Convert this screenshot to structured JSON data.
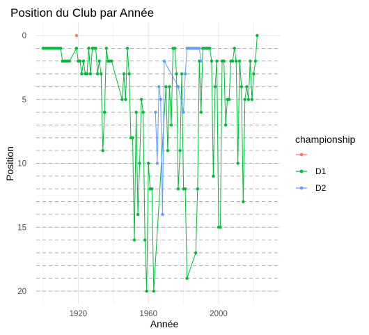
{
  "chart_data": {
    "type": "line",
    "title": "Position du Club par Année",
    "xlabel": "Année",
    "ylabel": "Position",
    "xlim": [
      1900,
      2026
    ],
    "ylim": [
      0,
      20
    ],
    "y_reversed": true,
    "x_ticks": [
      1920,
      1960,
      2000
    ],
    "x_tick_labels": [
      "1920",
      "1960",
      "2000"
    ],
    "y_ticks": [
      0,
      5,
      10,
      15,
      20
    ],
    "y_tick_labels": [
      "0",
      "5",
      "10",
      "15",
      "20"
    ],
    "minor_x_ticks": [
      1900,
      1940,
      1980,
      2020
    ],
    "minor_y_ticks": [
      2.5,
      7.5,
      12.5,
      17.5
    ],
    "dashed_hlines": [
      1,
      2,
      3,
      4,
      5,
      6,
      7,
      8,
      9,
      10,
      11,
      12,
      13,
      14,
      15,
      16,
      17,
      18,
      19,
      20
    ],
    "grid": true,
    "legend": {
      "title": "championship",
      "position": "right",
      "entries": [
        {
          "label": "",
          "color": "#F8766D"
        },
        {
          "label": "D1",
          "color": "#00BA38"
        },
        {
          "label": "D2",
          "color": "#619CFF"
        }
      ]
    },
    "series": [
      {
        "name": "",
        "color": "#F8766D",
        "points": [
          [
            1919,
            0
          ]
        ]
      },
      {
        "name": "D1",
        "color": "#00BA38",
        "points": [
          [
            1900,
            1
          ],
          [
            1901,
            1
          ],
          [
            1902,
            1
          ],
          [
            1903,
            1
          ],
          [
            1904,
            1
          ],
          [
            1905,
            1
          ],
          [
            1906,
            1
          ],
          [
            1907,
            1
          ],
          [
            1908,
            1
          ],
          [
            1909,
            1
          ],
          [
            1910,
            1
          ],
          [
            1911,
            2
          ],
          [
            1912,
            2
          ],
          [
            1913,
            2
          ],
          [
            1914,
            2
          ],
          [
            1915,
            2
          ],
          [
            1919,
            1
          ],
          [
            1920,
            2
          ],
          [
            1921,
            2
          ],
          [
            1922,
            3
          ],
          [
            1923,
            2
          ],
          [
            1924,
            3
          ],
          [
            1925,
            3
          ],
          [
            1926,
            1
          ],
          [
            1927,
            3
          ],
          [
            1928,
            1
          ],
          [
            1929,
            1
          ],
          [
            1930,
            1
          ],
          [
            1931,
            3
          ],
          [
            1932,
            2
          ],
          [
            1933,
            3
          ],
          [
            1934,
            9
          ],
          [
            1935,
            6
          ],
          [
            1936,
            1
          ],
          [
            1937,
            2
          ],
          [
            1938,
            2
          ],
          [
            1939,
            2
          ],
          [
            1945,
            5
          ],
          [
            1946,
            3
          ],
          [
            1947,
            5
          ],
          [
            1948,
            1
          ],
          [
            1949,
            3
          ],
          [
            1950,
            8
          ],
          [
            1951,
            8
          ],
          [
            1952,
            16
          ],
          [
            1953,
            6
          ],
          [
            1954,
            14
          ],
          [
            1955,
            10
          ],
          [
            1956,
            5
          ],
          [
            1957,
            6
          ],
          [
            1958,
            16
          ],
          [
            1959,
            20
          ],
          [
            1960,
            10
          ],
          [
            1961,
            12
          ],
          [
            1962,
            12
          ],
          [
            1963,
            20
          ],
          [
            1970,
            4
          ],
          [
            1971,
            9
          ],
          [
            1972,
            4
          ],
          [
            1973,
            7
          ],
          [
            1974,
            1
          ],
          [
            1975,
            1
          ],
          [
            1976,
            3
          ],
          [
            1977,
            12
          ],
          [
            1978,
            9
          ],
          [
            1979,
            3
          ],
          [
            1980,
            12
          ],
          [
            1981,
            12
          ],
          [
            1982,
            19
          ],
          [
            1987,
            17
          ],
          [
            1988,
            12
          ],
          [
            1989,
            2
          ],
          [
            1990,
            6
          ],
          [
            1991,
            1
          ],
          [
            1992,
            1
          ],
          [
            1993,
            1
          ],
          [
            1994,
            1
          ],
          [
            1995,
            1
          ],
          [
            1996,
            2
          ],
          [
            1997,
            11
          ],
          [
            1998,
            4
          ],
          [
            1999,
            2
          ],
          [
            2000,
            15
          ],
          [
            2001,
            15
          ],
          [
            2002,
            2
          ],
          [
            2003,
            2
          ],
          [
            2004,
            7
          ],
          [
            2005,
            5
          ],
          [
            2006,
            5
          ],
          [
            2007,
            2
          ],
          [
            2008,
            2
          ],
          [
            2009,
            1
          ],
          [
            2010,
            2
          ],
          [
            2011,
            10
          ],
          [
            2012,
            2
          ],
          [
            2013,
            4
          ],
          [
            2014,
            13
          ],
          [
            2015,
            5
          ],
          [
            2016,
            4
          ],
          [
            2017,
            5
          ],
          [
            2018,
            2
          ],
          [
            2019,
            5
          ],
          [
            2020,
            3
          ],
          [
            2021,
            2
          ],
          [
            2022,
            0
          ]
        ]
      },
      {
        "name": "D2",
        "color": "#619CFF",
        "points": [
          [
            1964,
            6
          ],
          [
            1965,
            10
          ],
          [
            1966,
            4
          ],
          [
            1967,
            5
          ],
          [
            1968,
            14
          ],
          [
            1969,
            2
          ],
          [
            1977,
            4
          ],
          [
            1980,
            6
          ],
          [
            1981,
            3
          ],
          [
            1982,
            1
          ],
          [
            1983,
            1
          ],
          [
            1984,
            1
          ],
          [
            1985,
            1
          ],
          [
            1986,
            1
          ],
          [
            1987,
            1
          ],
          [
            1988,
            1
          ],
          [
            1989,
            1
          ],
          [
            1990,
            2
          ]
        ]
      }
    ]
  }
}
